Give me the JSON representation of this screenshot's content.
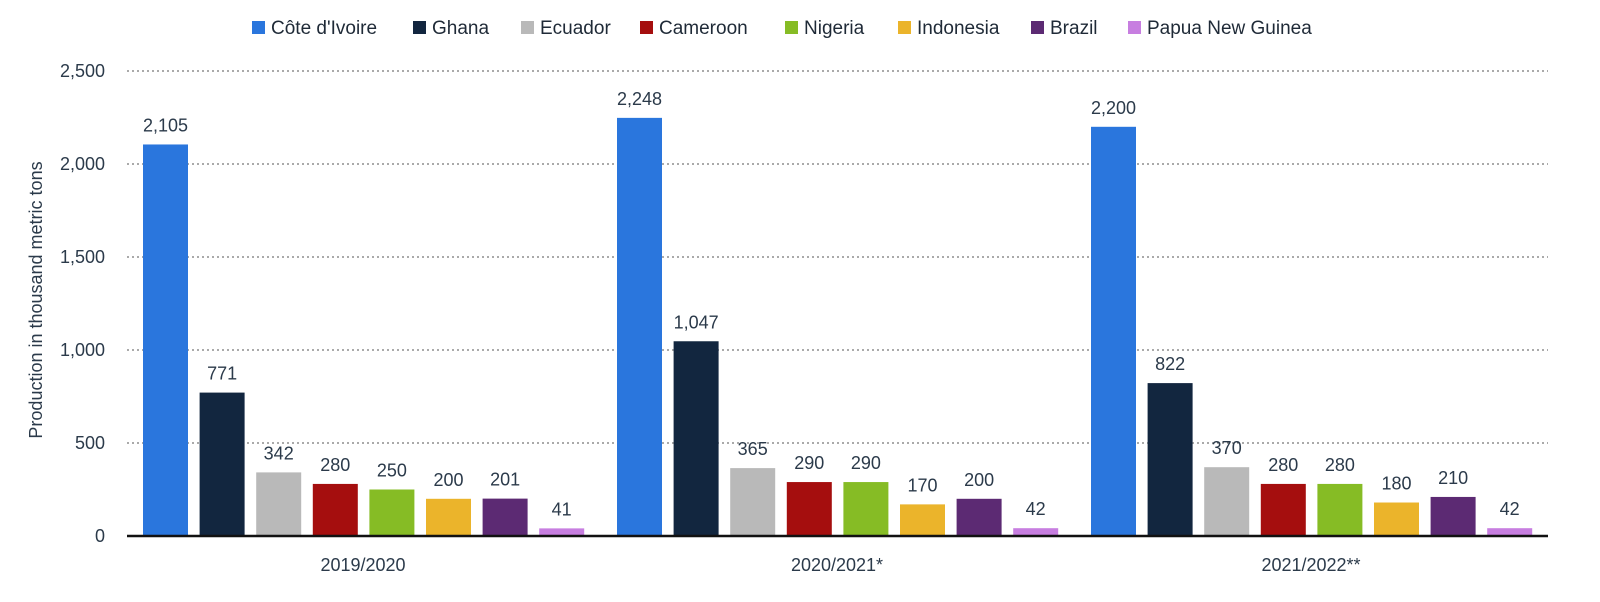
{
  "chart_data": {
    "type": "bar",
    "ylabel": "Production in thousand metric tons",
    "ylim": [
      0,
      2500
    ],
    "yticks": [
      0,
      500,
      1000,
      1500,
      2000,
      2500
    ],
    "ytick_labels": [
      "0",
      "500",
      "1,000",
      "1,500",
      "2,000",
      "2,500"
    ],
    "grid": true,
    "legend_position": "top",
    "categories": [
      "2019/2020",
      "2020/2021*",
      "2021/2022**"
    ],
    "series": [
      {
        "name": "Côte d'Ivoire",
        "color": "#2a76dd",
        "values": [
          2105,
          2248,
          2200
        ],
        "labels": [
          "2,105",
          "2,248",
          "2,200"
        ]
      },
      {
        "name": "Ghana",
        "color": "#12263f",
        "values": [
          771,
          1047,
          822
        ],
        "labels": [
          "771",
          "1,047",
          "822"
        ]
      },
      {
        "name": "Ecuador",
        "color": "#b9b9b9",
        "values": [
          342,
          365,
          370
        ],
        "labels": [
          "342",
          "365",
          "370"
        ]
      },
      {
        "name": "Cameroon",
        "color": "#a50e0e",
        "values": [
          280,
          290,
          280
        ],
        "labels": [
          "280",
          "290",
          "280"
        ]
      },
      {
        "name": "Nigeria",
        "color": "#86bc25",
        "values": [
          250,
          290,
          280
        ],
        "labels": [
          "250",
          "290",
          "280"
        ]
      },
      {
        "name": "Indonesia",
        "color": "#ebb42b",
        "values": [
          200,
          170,
          180
        ],
        "labels": [
          "200",
          "170",
          "180"
        ]
      },
      {
        "name": "Brazil",
        "color": "#5c2a73",
        "values": [
          201,
          200,
          210
        ],
        "labels": [
          "201",
          "200",
          "210"
        ]
      },
      {
        "name": "Papua New Guinea",
        "color": "#c77ee0",
        "values": [
          41,
          42,
          42
        ],
        "labels": [
          "41",
          "42",
          "42"
        ]
      }
    ]
  }
}
